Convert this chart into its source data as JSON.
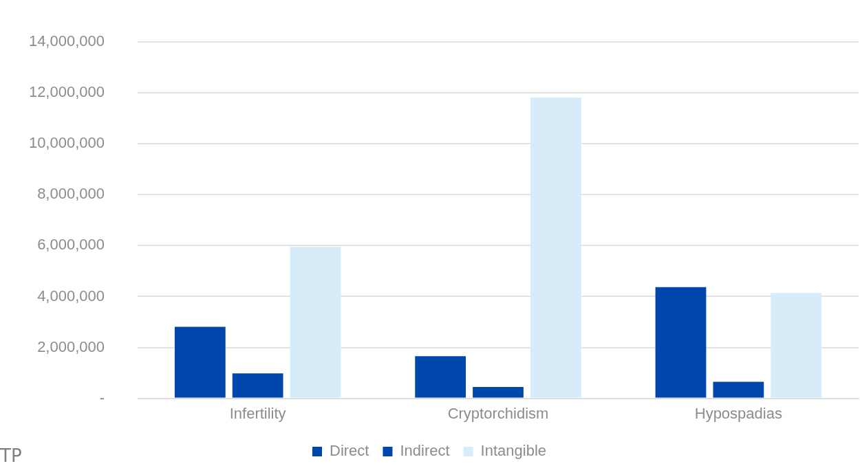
{
  "chart_data": {
    "type": "bar",
    "categories": [
      "Infertility",
      "Cryptorchidism",
      "Hypospadias"
    ],
    "series": [
      {
        "name": "Direct",
        "color": "#0047ab",
        "values": [
          2810000,
          1660000,
          4370000
        ]
      },
      {
        "name": "Indirect",
        "color": "#0047ab",
        "values": [
          980000,
          450000,
          650000
        ]
      },
      {
        "name": "Intangible",
        "color": "#d6ecf8",
        "values": [
          5950000,
          11820000,
          4140000
        ]
      }
    ],
    "ylim": [
      0,
      14000000
    ],
    "yticks": [
      {
        "value": 0,
        "label": "-"
      },
      {
        "value": 2000000,
        "label": "2,000,000"
      },
      {
        "value": 4000000,
        "label": "4,000,000"
      },
      {
        "value": 6000000,
        "label": "6,000,000"
      },
      {
        "value": 8000000,
        "label": "8,000,000"
      },
      {
        "value": 10000000,
        "label": "10,000,000"
      },
      {
        "value": 12000000,
        "label": "12,000,000"
      },
      {
        "value": 14000000,
        "label": "14,000,000"
      }
    ],
    "grid": "y",
    "legend": "bottom",
    "annotations": [
      "TP"
    ]
  }
}
